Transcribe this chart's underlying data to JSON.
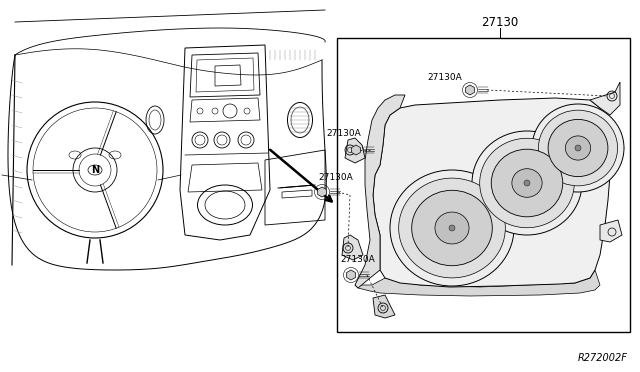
{
  "bg_color": "#ffffff",
  "lc": "#000000",
  "glc": "#888888",
  "label_27130": "27130",
  "label_27130A": "27130A",
  "ref_code": "R272002F",
  "figsize": [
    6.4,
    3.72
  ],
  "dpi": 100
}
